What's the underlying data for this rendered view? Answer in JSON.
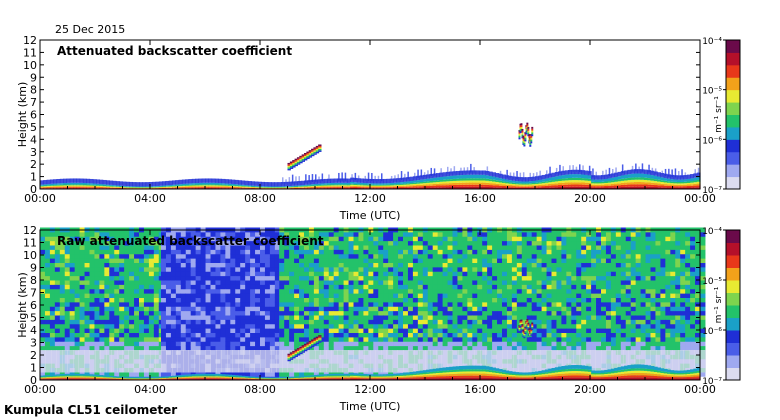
{
  "header": {
    "date": "25 Dec 2015"
  },
  "footer": {
    "site": "Kumpula CL51 ceilometer"
  },
  "colorbar": {
    "unit_label": "m⁻¹ sr⁻¹",
    "colors": [
      "#dcdcf0",
      "#9fa9f0",
      "#4a5de8",
      "#1f2fd6",
      "#1aa0c8",
      "#23c26a",
      "#7ed44e",
      "#e8ea32",
      "#f3a21a",
      "#e8381a",
      "#b4102a",
      "#6a0a4a"
    ]
  },
  "chart_data": [
    {
      "type": "heatmap",
      "title": "Attenuated backscatter coefficient",
      "xlabel": "Time (UTC)",
      "ylabel": "Height (km)",
      "x_tick_labels": [
        "00:00",
        "04:00",
        "08:00",
        "12:00",
        "16:00",
        "20:00",
        "00:00"
      ],
      "x_ticks_hours": [
        0,
        4,
        8,
        12,
        16,
        20,
        24
      ],
      "xlim_hours": [
        0,
        24
      ],
      "y_ticks": [
        0,
        1,
        2,
        3,
        4,
        5,
        6,
        7,
        8,
        9,
        10,
        11,
        12
      ],
      "ylim_km": [
        0,
        12
      ],
      "colorbar": {
        "type": "log",
        "ticks": [
          "10⁻⁷",
          "10⁻⁶",
          "10⁻⁵",
          "10⁻⁴"
        ],
        "range": [
          1e-07,
          0.0001
        ]
      },
      "features": [
        {
          "kind": "surface layer",
          "hours": [
            0,
            24
          ],
          "top_km": [
            0.3,
            1.5
          ]
        },
        {
          "kind": "cloud",
          "hours": [
            9.0,
            10.2
          ],
          "height_km": [
            1.5,
            3.5
          ]
        },
        {
          "kind": "cloud",
          "hours": [
            17.4,
            17.9
          ],
          "height_km": [
            3.0,
            5.5
          ]
        }
      ]
    },
    {
      "type": "heatmap",
      "title": "Raw attenuated backscatter coefficient",
      "xlabel": "Time (UTC)",
      "ylabel": "Height (km)",
      "x_tick_labels": [
        "00:00",
        "04:00",
        "08:00",
        "12:00",
        "16:00",
        "20:00",
        "00:00"
      ],
      "x_ticks_hours": [
        0,
        4,
        8,
        12,
        16,
        20,
        24
      ],
      "xlim_hours": [
        0,
        24
      ],
      "y_ticks": [
        0,
        1,
        2,
        3,
        4,
        5,
        6,
        7,
        8,
        9,
        10,
        11,
        12
      ],
      "ylim_km": [
        0,
        12
      ],
      "colorbar": {
        "type": "log",
        "ticks": [
          "10⁻⁷",
          "10⁻⁶",
          "10⁻⁵",
          "10⁻⁴"
        ],
        "range": [
          1e-07,
          0.0001
        ]
      },
      "features": [
        {
          "kind": "background noise high",
          "hours": [
            0,
            4.4
          ]
        },
        {
          "kind": "background noise low",
          "hours": [
            4.4,
            8.7
          ]
        },
        {
          "kind": "background noise high",
          "hours": [
            8.7,
            24
          ]
        },
        {
          "kind": "cloud",
          "hours": [
            9.0,
            10.2
          ],
          "height_km": [
            1.5,
            3.5
          ]
        },
        {
          "kind": "cloud",
          "hours": [
            17.4,
            17.9
          ],
          "height_km": [
            3.0,
            5.0
          ]
        }
      ]
    }
  ]
}
